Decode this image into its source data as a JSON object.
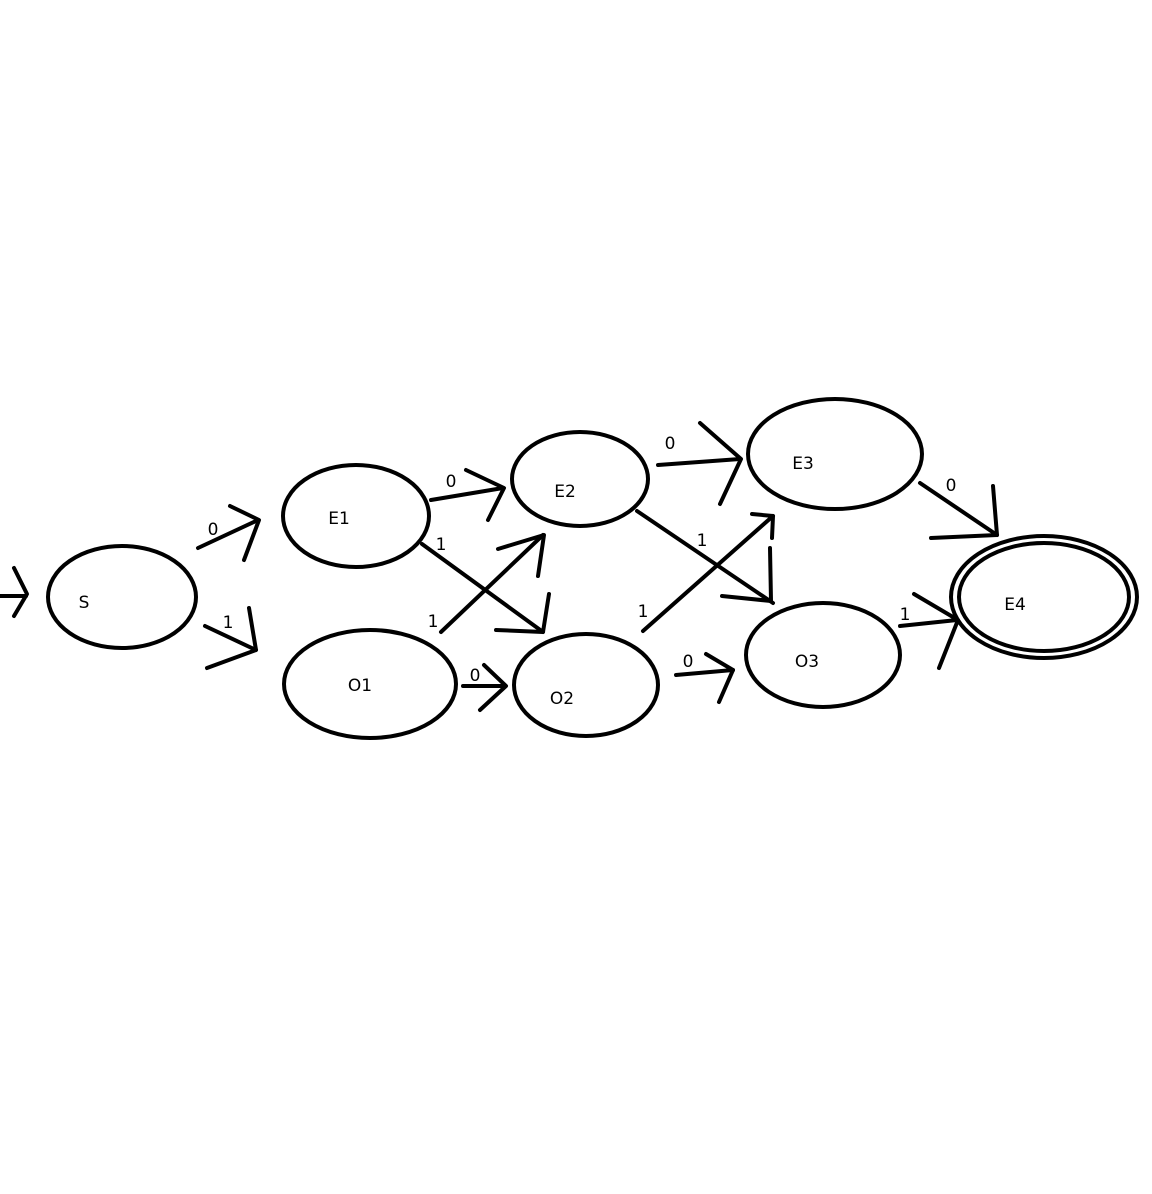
{
  "diagram": {
    "type": "finite-state-automaton",
    "start_state": "S",
    "accept_states": [
      "E4"
    ],
    "colors": {
      "background": "#ffffff",
      "stroke": "#000000",
      "text": "#000000"
    },
    "states": [
      {
        "id": "S",
        "label": "S"
      },
      {
        "id": "E1",
        "label": "E1"
      },
      {
        "id": "O1",
        "label": "O1"
      },
      {
        "id": "E2",
        "label": "E2"
      },
      {
        "id": "O2",
        "label": "O2"
      },
      {
        "id": "E3",
        "label": "E3"
      },
      {
        "id": "O3",
        "label": "O3"
      },
      {
        "id": "E4",
        "label": "E4"
      }
    ],
    "transitions": [
      {
        "from": "S",
        "to": "E1",
        "symbol": "0"
      },
      {
        "from": "S",
        "to": "O1",
        "symbol": "1"
      },
      {
        "from": "E1",
        "to": "E2",
        "symbol": "0"
      },
      {
        "from": "E1",
        "to": "O2",
        "symbol": "1"
      },
      {
        "from": "O1",
        "to": "E2",
        "symbol": "1"
      },
      {
        "from": "O1",
        "to": "O2",
        "symbol": "0"
      },
      {
        "from": "E2",
        "to": "E3",
        "symbol": "0"
      },
      {
        "from": "E2",
        "to": "O3",
        "symbol": "1"
      },
      {
        "from": "O2",
        "to": "E3",
        "symbol": "1"
      },
      {
        "from": "O2",
        "to": "O3",
        "symbol": "0"
      },
      {
        "from": "E3",
        "to": "E4",
        "symbol": "0"
      },
      {
        "from": "O3",
        "to": "E4",
        "symbol": "1"
      }
    ]
  }
}
